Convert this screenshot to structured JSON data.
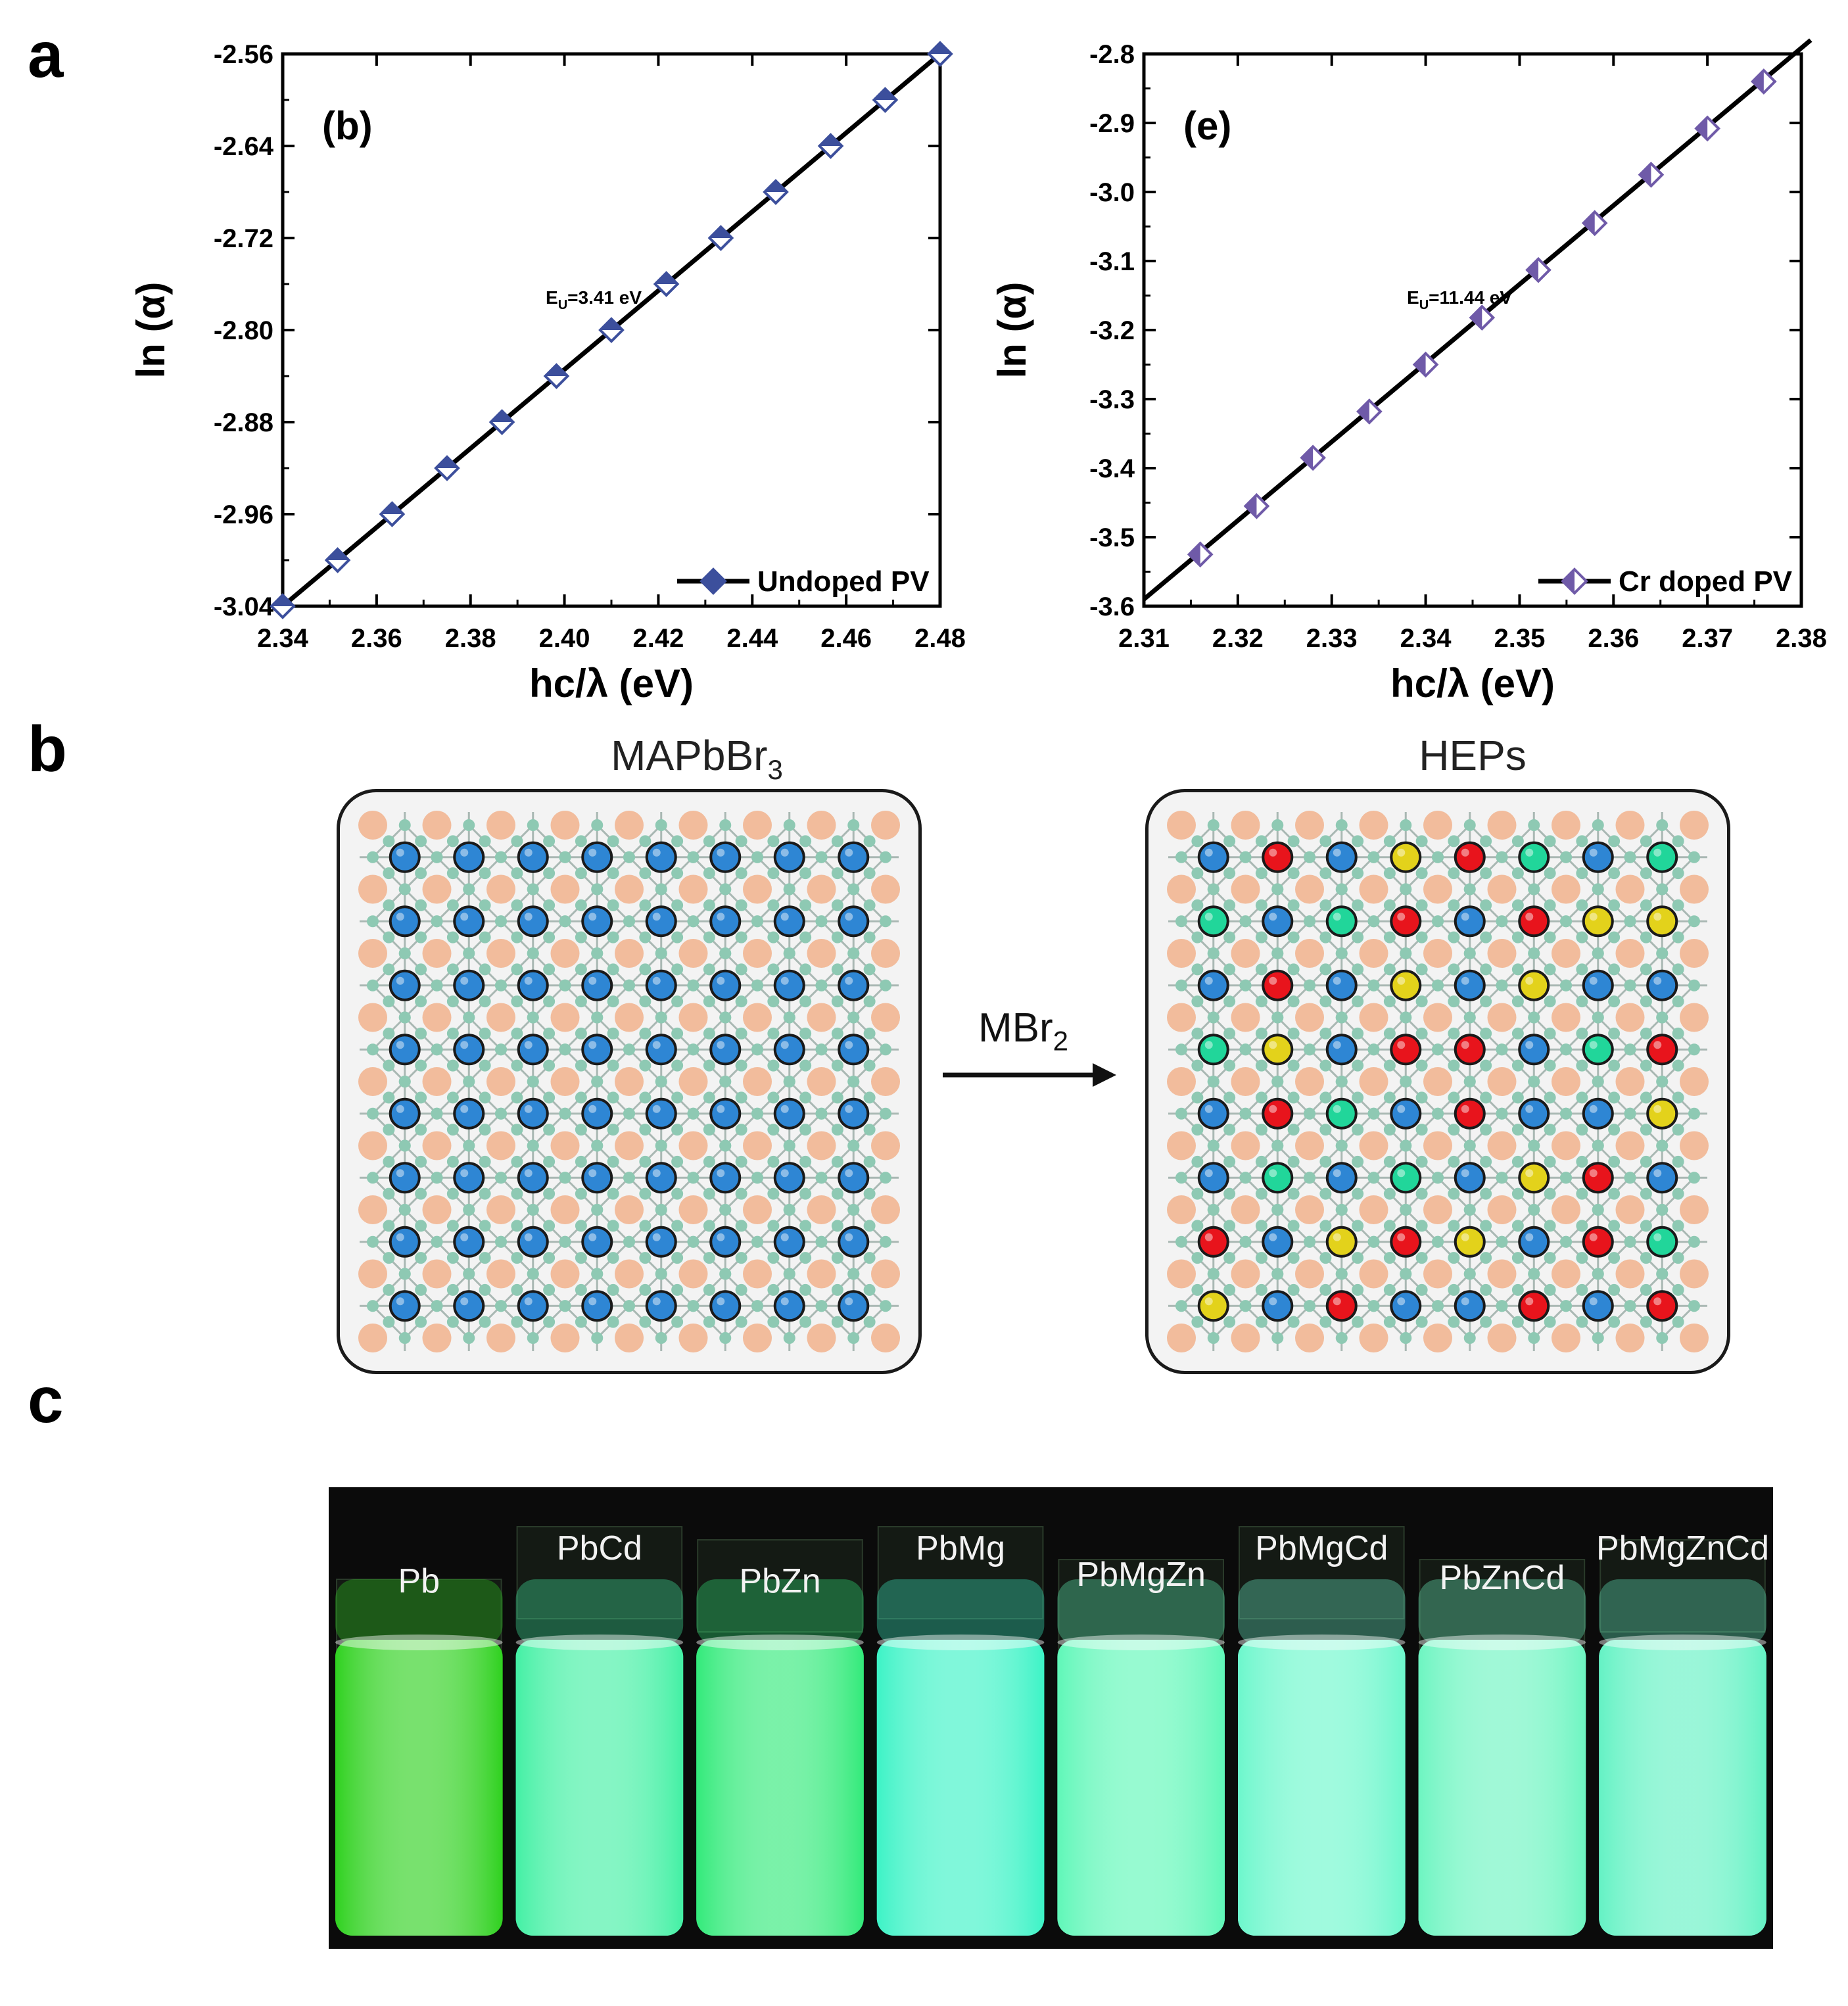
{
  "panels": {
    "a": "a",
    "b": "b",
    "c": "c"
  },
  "chart_data": [
    {
      "type": "scatter",
      "panel_label": "(b)",
      "xlabel": "hc/λ (eV)",
      "ylabel": "ln (α)",
      "xlim": [
        2.34,
        2.48
      ],
      "ylim": [
        -3.04,
        -2.56
      ],
      "xticks": [
        "2.34",
        "2.36",
        "2.38",
        "2.40",
        "2.42",
        "2.44",
        "2.46",
        "2.48"
      ],
      "yticks": [
        "-2.56",
        "-2.64",
        "-2.72",
        "-2.80",
        "-2.88",
        "-2.96",
        "-3.04"
      ],
      "annotation": {
        "prefix": "E",
        "sub": "U",
        "text": "=3.41 eV"
      },
      "legend": "Undoped PV",
      "legend_position": "bottom-right",
      "marker_color": "#3c4f9c",
      "fit_line": {
        "x": [
          2.34,
          2.48
        ],
        "y": [
          -3.04,
          -2.56
        ]
      },
      "x": [
        2.34,
        2.3517,
        2.3633,
        2.375,
        2.3867,
        2.3983,
        2.41,
        2.4217,
        2.4333,
        2.445,
        2.4567,
        2.4683,
        2.48
      ],
      "y": [
        -3.04,
        -3.0,
        -2.96,
        -2.92,
        -2.88,
        -2.84,
        -2.8,
        -2.76,
        -2.72,
        -2.68,
        -2.64,
        -2.6,
        -2.56
      ]
    },
    {
      "type": "scatter",
      "panel_label": "(e)",
      "xlabel": "hc/λ (eV)",
      "ylabel": "ln (α)",
      "xlim": [
        2.31,
        2.38
      ],
      "ylim": [
        -3.6,
        -2.8
      ],
      "xticks": [
        "2.31",
        "2.32",
        "2.33",
        "2.34",
        "2.35",
        "2.36",
        "2.37",
        "2.38"
      ],
      "yticks": [
        "-2.8",
        "-2.9",
        "-3.0",
        "-3.1",
        "-3.2",
        "-3.3",
        "-3.4",
        "-3.5",
        "-3.6"
      ],
      "annotation": {
        "prefix": "E",
        "sub": "U",
        "text": "=11.44 eV"
      },
      "legend": "Cr doped PV",
      "legend_position": "bottom-right",
      "marker_color": "#6f5aa8",
      "fit_line": {
        "x": [
          2.31,
          2.381
        ],
        "y": [
          -3.59,
          -2.78
        ]
      },
      "x": [
        2.316,
        2.322,
        2.328,
        2.334,
        2.34,
        2.346,
        2.352,
        2.358,
        2.364,
        2.37,
        2.376
      ],
      "y": [
        -3.525,
        -3.455,
        -3.385,
        -3.318,
        -3.25,
        -3.182,
        -3.113,
        -3.045,
        -2.975,
        -2.908,
        -2.84
      ]
    }
  ],
  "lattice": {
    "left_title_main": "MAPbBr",
    "left_title_sub": "3",
    "right_title": "HEPs",
    "arrow_label_main": "MBr",
    "arrow_label_sub": "2",
    "colors": {
      "blue": "#2e86d4",
      "red": "#e8141c",
      "yellow": "#e3d21b",
      "green": "#21d69a",
      "orange": "#f2bc9c",
      "node": "#8ec9b3"
    },
    "hep_grid": [
      [
        "blue",
        "red",
        "blue",
        "yellow",
        "red",
        "green",
        "blue",
        "green"
      ],
      [
        "green",
        "blue",
        "green",
        "red",
        "blue",
        "red",
        "yellow",
        "yellow"
      ],
      [
        "blue",
        "red",
        "blue",
        "yellow",
        "blue",
        "yellow",
        "blue",
        "blue"
      ],
      [
        "green",
        "yellow",
        "blue",
        "red",
        "red",
        "blue",
        "green",
        "red"
      ],
      [
        "blue",
        "red",
        "green",
        "blue",
        "red",
        "blue",
        "blue",
        "yellow"
      ],
      [
        "blue",
        "green",
        "blue",
        "green",
        "blue",
        "yellow",
        "red",
        "blue"
      ],
      [
        "red",
        "blue",
        "yellow",
        "red",
        "yellow",
        "blue",
        "red",
        "green"
      ],
      [
        "yellow",
        "blue",
        "red",
        "blue",
        "blue",
        "red",
        "blue",
        "red"
      ]
    ]
  },
  "vials": [
    {
      "label": "Pb",
      "color": "#2fd11f"
    },
    {
      "label": "PbCd",
      "color": "#43f0a4"
    },
    {
      "label": "PbZn",
      "color": "#32ea7a"
    },
    {
      "label": "PbMg",
      "color": "#3cf3c6"
    },
    {
      "label": "PbMgZn",
      "color": "#5ff7b8"
    },
    {
      "label": "PbMgCd",
      "color": "#6cf7cc"
    },
    {
      "label": "PbZnCd",
      "color": "#6df5c1"
    },
    {
      "label": "PbMgZnCd",
      "color": "#64f2c4"
    }
  ]
}
